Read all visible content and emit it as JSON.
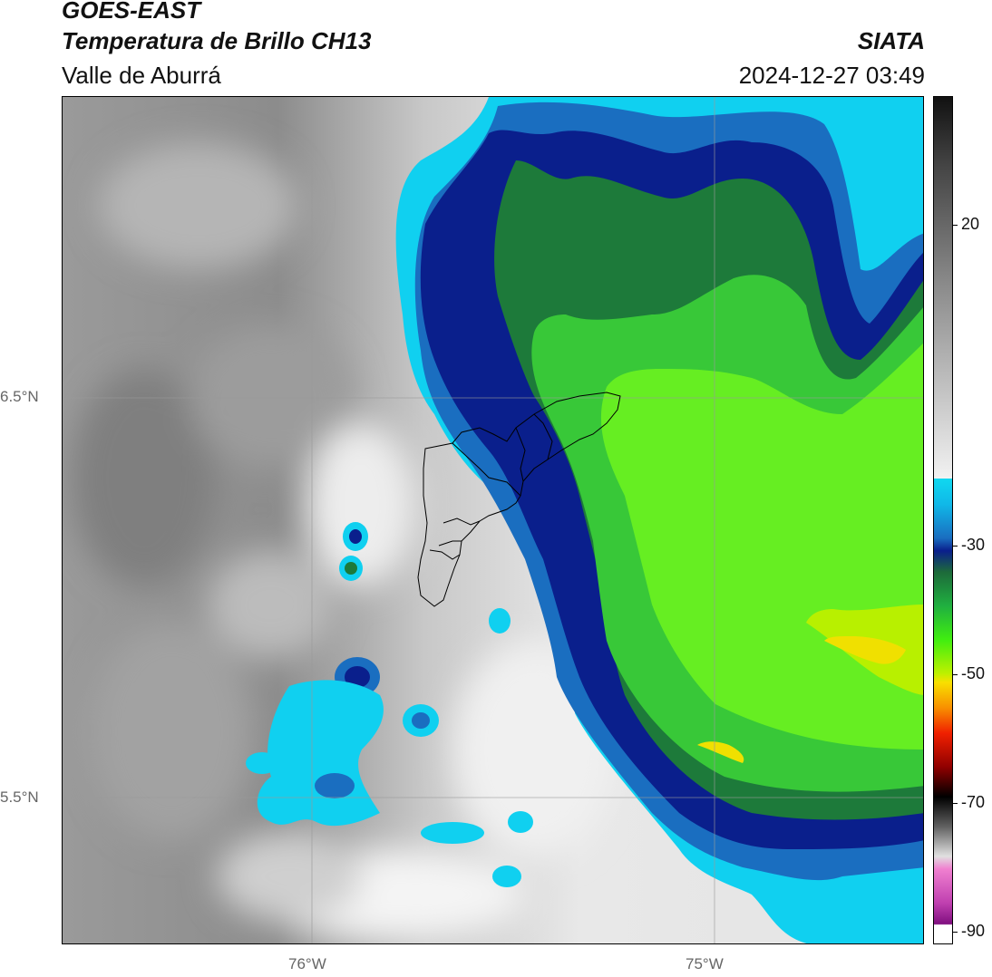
{
  "header": {
    "satellite": "GOES-EAST",
    "product": "Temperatura de Brillo CH13",
    "region": "Valle de Aburrá",
    "source": "SIATA",
    "timestamp": "2024-12-27 03:49"
  },
  "axes": {
    "lat_labels": [
      "6.5°N",
      "5.5°N"
    ],
    "lon_labels": [
      "76°W",
      "75°W"
    ]
  },
  "colorbar": {
    "ticks": [
      "20",
      "-30",
      "-50",
      "-70",
      "-90"
    ],
    "tick_values": [
      20,
      -30,
      -50,
      -70,
      -90
    ],
    "range": [
      -92,
      40
    ]
  },
  "colors": {
    "warm_gray": "#8a8a8a",
    "light_gray": "#e6e6e6",
    "cyan": "#10d0f0",
    "blue": "#1a6ec0",
    "navy": "#0a1f8c",
    "dark_green": "#1d7a3a",
    "green": "#38c838",
    "lime": "#66ee22",
    "yellow": "#f0e000"
  }
}
